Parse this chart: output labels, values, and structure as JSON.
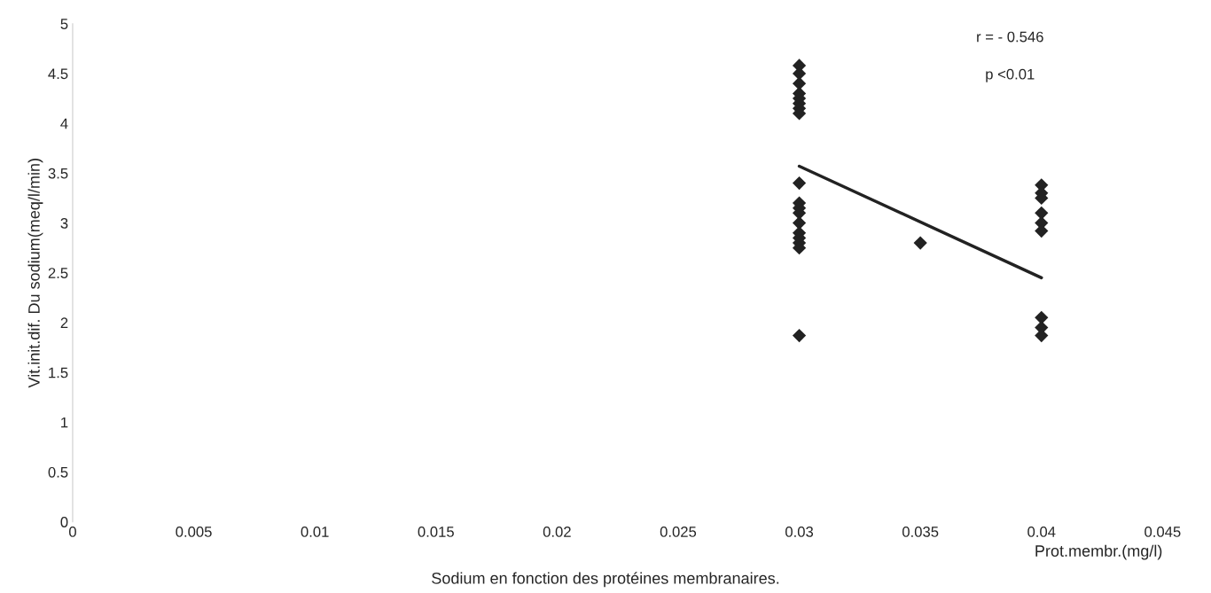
{
  "chart_data": {
    "type": "scatter",
    "xlabel": "Prot.membr.(mg/l)",
    "ylabel": "Vit.init.dif. Du sodium(meq/l/min)",
    "annotations": [
      "r = - 0.546",
      "p <0.01",
      "Sodium en fonction des protéines membranaires."
    ],
    "series": [
      {
        "color": "#222222",
        "marker": "diamond",
        "x": [
          0.03,
          0.03,
          0.03,
          0.03,
          0.03,
          0.03,
          0.03,
          0.03,
          0.03,
          0.03,
          0.03,
          0.03,
          0.03,
          0.03,
          0.03,
          0.03,
          0.03,
          0.03,
          0.035,
          0.04,
          0.04,
          0.04,
          0.04,
          0.04,
          0.04,
          0.04,
          0.04,
          0.04
        ],
        "values": [
          4.58,
          4.5,
          4.4,
          4.3,
          4.25,
          4.2,
          4.15,
          4.1,
          3.4,
          3.2,
          3.15,
          3.1,
          3.0,
          2.9,
          2.85,
          2.8,
          2.75,
          1.87,
          2.8,
          3.38,
          3.3,
          3.25,
          3.1,
          3.0,
          2.92,
          2.05,
          1.95,
          1.87
        ]
      },
      {
        "type": "line",
        "color": "#222222",
        "marker": "none",
        "x": [
          0.03,
          0.04
        ],
        "values": [
          3.57,
          2.45
        ]
      }
    ],
    "xlim": [
      0,
      0.045
    ],
    "ylim": [
      0,
      5
    ],
    "xticks": [
      0,
      0.005,
      0.01,
      0.015,
      0.02,
      0.025,
      0.03,
      0.035,
      0.04,
      0.045
    ],
    "yticks": [
      0,
      0.5,
      1,
      1.5,
      2,
      2.5,
      3,
      3.5,
      4,
      4.5,
      5
    ],
    "grid": false,
    "legend": false
  }
}
